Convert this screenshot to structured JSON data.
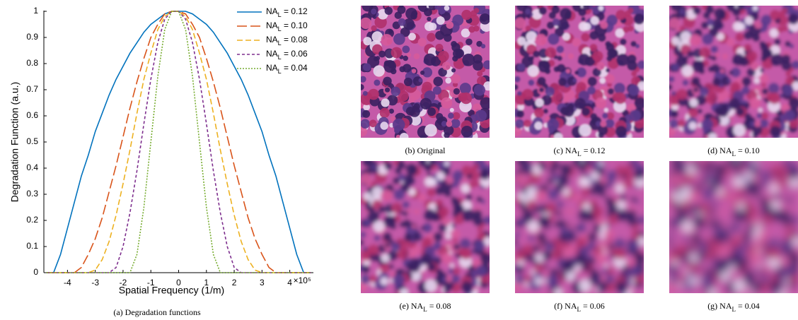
{
  "chart_data": {
    "type": "line",
    "ylabel": "Degradation Function (a.u.)",
    "xlabel": "Spatial Frequency (1/m)",
    "x_offset_label": "×10⁵",
    "caption": "(a) Degradation functions",
    "xlim": [
      -4.85,
      4.85
    ],
    "ylim": [
      0,
      1
    ],
    "xticks": [
      -4,
      -3,
      -2,
      -1,
      0,
      1,
      2,
      3,
      4
    ],
    "yticks": [
      0,
      0.1,
      0.2,
      0.3,
      0.4,
      0.5,
      0.6,
      0.7,
      0.8,
      0.9,
      1
    ],
    "legend": "upper right",
    "x": [
      -4.75,
      -4.5,
      -4.25,
      -4,
      -3.75,
      -3.5,
      -3.25,
      -3,
      -2.75,
      -2.5,
      -2.25,
      -2,
      -1.75,
      -1.5,
      -1.25,
      -1,
      -0.75,
      -0.5,
      -0.25,
      0,
      0.25,
      0.5,
      0.75,
      1,
      1.25,
      1.5,
      1.75,
      2,
      2.25,
      2.5,
      2.75,
      3,
      3.25,
      3.5,
      3.75,
      4,
      4.25,
      4.5,
      4.75
    ],
    "series": [
      {
        "name": "NA_L = 0.12",
        "color": "#0072bd",
        "dash": "none",
        "values": [
          0,
          0,
          0.07,
          0.17,
          0.27,
          0.37,
          0.45,
          0.54,
          0.61,
          0.68,
          0.74,
          0.79,
          0.84,
          0.88,
          0.92,
          0.95,
          0.97,
          0.99,
          1,
          1,
          1,
          0.99,
          0.97,
          0.95,
          0.92,
          0.88,
          0.84,
          0.79,
          0.74,
          0.68,
          0.61,
          0.54,
          0.45,
          0.37,
          0.27,
          0.17,
          0.07,
          0,
          0
        ]
      },
      {
        "name": "NA_L = 0.10",
        "color": "#d95319",
        "dash": "14 5",
        "values": [
          0,
          0,
          0,
          0,
          0,
          0.02,
          0.07,
          0.13,
          0.21,
          0.31,
          0.41,
          0.52,
          0.63,
          0.73,
          0.82,
          0.9,
          0.95,
          0.99,
          1,
          1,
          0.99,
          0.95,
          0.9,
          0.82,
          0.73,
          0.63,
          0.52,
          0.41,
          0.31,
          0.21,
          0.13,
          0.07,
          0.02,
          0,
          0,
          0,
          0,
          0,
          0
        ]
      },
      {
        "name": "NA_L = 0.08",
        "color": "#edb120",
        "dash": "8 4",
        "values": [
          0,
          0,
          0,
          0,
          0,
          0,
          0,
          0.01,
          0.05,
          0.12,
          0.22,
          0.34,
          0.47,
          0.61,
          0.74,
          0.84,
          0.93,
          0.98,
          1,
          1,
          0.98,
          0.93,
          0.84,
          0.74,
          0.61,
          0.47,
          0.34,
          0.22,
          0.12,
          0.05,
          0.01,
          0,
          0,
          0,
          0,
          0,
          0,
          0,
          0
        ]
      },
      {
        "name": "NA_L = 0.06",
        "color": "#7e2f8e",
        "dash": "4 3",
        "values": [
          0,
          0,
          0,
          0,
          0,
          0,
          0,
          0,
          0,
          0,
          0.02,
          0.1,
          0.23,
          0.39,
          0.57,
          0.74,
          0.88,
          0.97,
          1,
          1,
          0.97,
          0.88,
          0.74,
          0.57,
          0.39,
          0.23,
          0.1,
          0.02,
          0,
          0,
          0,
          0,
          0,
          0,
          0,
          0,
          0,
          0,
          0
        ]
      },
      {
        "name": "NA_L = 0.04",
        "color": "#77ac30",
        "dash": "2 2",
        "values": [
          0,
          0,
          0,
          0,
          0,
          0,
          0,
          0,
          0,
          0,
          0,
          0,
          0,
          0.07,
          0.25,
          0.5,
          0.75,
          0.93,
          1,
          1,
          0.93,
          0.75,
          0.5,
          0.25,
          0.07,
          0,
          0,
          0,
          0,
          0,
          0,
          0,
          0,
          0,
          0,
          0,
          0,
          0,
          0
        ]
      }
    ]
  },
  "panels": [
    {
      "caption": "(b) Original"
    },
    {
      "caption": "(c) NA_L = 0.12"
    },
    {
      "caption": "(d) NA_L = 0.10"
    },
    {
      "caption": "(e) NA_L = 0.08"
    },
    {
      "caption": "(f) NA_L = 0.06"
    },
    {
      "caption": "(g) NA_L = 0.04"
    }
  ]
}
